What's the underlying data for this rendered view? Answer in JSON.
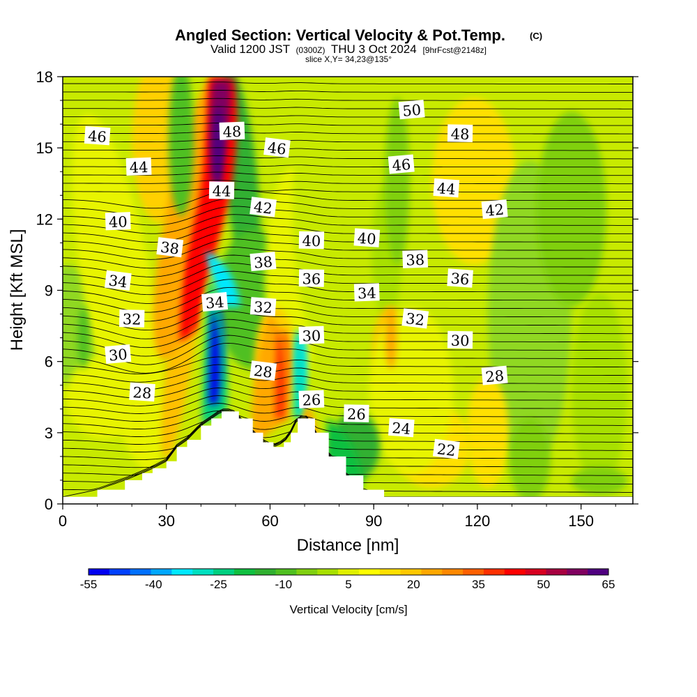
{
  "title": {
    "main": "Angled Section: Vertical Velocity & Pot.Temp.",
    "copyright": "(C)",
    "valid_prefix": "Valid 1200 JST",
    "valid_utc": "(0300Z)",
    "valid_date": "THU 3 Oct 2024",
    "forecast": "[9hrFcst@2148z]",
    "slice": "slice X,Y= 34,23@135°"
  },
  "chart_data": {
    "type": "heatmap",
    "xlabel": "Distance [nm]",
    "ylabel": "Height [Kft MSL]",
    "xlim": [
      0,
      165
    ],
    "ylim": [
      0,
      18
    ],
    "xticks": [
      "0",
      "30",
      "60",
      "90",
      "120",
      "150"
    ],
    "yticks": [
      "0",
      "3",
      "6",
      "9",
      "12",
      "15",
      "18"
    ],
    "xtick_values": [
      0,
      30,
      60,
      90,
      120,
      150
    ],
    "ytick_values": [
      0,
      3,
      6,
      9,
      12,
      15,
      18
    ],
    "colorbar": {
      "label": "Vertical Velocity [cm/s]",
      "tick_labels": [
        "-55",
        "-40",
        "-25",
        "-10",
        "5",
        "20",
        "35",
        "50",
        "65"
      ],
      "tick_values": [
        -55,
        -40,
        -25,
        -10,
        5,
        20,
        35,
        50,
        65
      ],
      "bins": [
        -55,
        -50,
        -45,
        -40,
        -35,
        -30,
        -25,
        -20,
        -15,
        -10,
        -5,
        0,
        5,
        10,
        15,
        20,
        25,
        30,
        35,
        40,
        45,
        50,
        55,
        60,
        65
      ],
      "colors": [
        "#0000f0",
        "#0040ff",
        "#0070ff",
        "#00a8ff",
        "#00e8ff",
        "#00e0c0",
        "#00d080",
        "#10c040",
        "#30b030",
        "#50c020",
        "#80d010",
        "#a8e000",
        "#e0f000",
        "#ffff00",
        "#ffe000",
        "#ffc800",
        "#ffa800",
        "#ff8800",
        "#ff6000",
        "#ff3000",
        "#ff0000",
        "#d80020",
        "#a80040",
        "#800060",
        "#500080"
      ]
    },
    "terrain": [
      [
        0,
        0.3
      ],
      [
        10,
        0.6
      ],
      [
        18,
        1.0
      ],
      [
        23,
        1.3
      ],
      [
        26,
        1.5
      ],
      [
        30,
        1.8
      ],
      [
        33,
        2.4
      ],
      [
        36,
        2.7
      ],
      [
        40,
        3.3
      ],
      [
        43,
        3.6
      ],
      [
        46,
        3.9
      ],
      [
        49,
        3.9
      ],
      [
        51,
        3.6
      ],
      [
        55,
        3.0
      ],
      [
        58,
        2.6
      ],
      [
        61,
        2.4
      ],
      [
        64,
        2.6
      ],
      [
        66,
        3.0
      ],
      [
        68,
        3.6
      ],
      [
        71,
        3.6
      ],
      [
        73,
        3.0
      ],
      [
        77,
        2.0
      ],
      [
        82,
        1.2
      ],
      [
        87,
        0.6
      ],
      [
        93,
        0.3
      ],
      [
        165,
        0.3
      ]
    ],
    "velocity_features": [
      {
        "x": 45,
        "y": 15,
        "value": 65
      },
      {
        "x": 38,
        "y": 9,
        "value": 45
      },
      {
        "x": 45,
        "y": 6.5,
        "value": -55
      },
      {
        "x": 69,
        "y": 6,
        "value": -35
      },
      {
        "x": 64,
        "y": 6,
        "value": 35
      },
      {
        "x": 95,
        "y": 7,
        "value": 25
      },
      {
        "x": 6,
        "y": 7,
        "value": -10
      }
    ],
    "theta_labels": [
      {
        "text": "50",
        "x": 101,
        "y": 16.6
      },
      {
        "text": "48",
        "x": 49,
        "y": 15.7
      },
      {
        "text": "48",
        "x": 115,
        "y": 15.6
      },
      {
        "text": "46",
        "x": 10,
        "y": 15.5
      },
      {
        "text": "46",
        "x": 62,
        "y": 15.0
      },
      {
        "text": "46",
        "x": 98,
        "y": 14.3
      },
      {
        "text": "44",
        "x": 22,
        "y": 14.2
      },
      {
        "text": "44",
        "x": 46,
        "y": 13.2
      },
      {
        "text": "44",
        "x": 111,
        "y": 13.3
      },
      {
        "text": "42",
        "x": 58,
        "y": 12.5
      },
      {
        "text": "42",
        "x": 125,
        "y": 12.4
      },
      {
        "text": "40",
        "x": 16,
        "y": 11.9
      },
      {
        "text": "40",
        "x": 72,
        "y": 11.1
      },
      {
        "text": "40",
        "x": 88,
        "y": 11.2
      },
      {
        "text": "38",
        "x": 31,
        "y": 10.8
      },
      {
        "text": "38",
        "x": 58,
        "y": 10.2
      },
      {
        "text": "38",
        "x": 102,
        "y": 10.3
      },
      {
        "text": "36",
        "x": 72,
        "y": 9.5
      },
      {
        "text": "36",
        "x": 115,
        "y": 9.5
      },
      {
        "text": "34",
        "x": 16,
        "y": 9.4
      },
      {
        "text": "34",
        "x": 44,
        "y": 8.5
      },
      {
        "text": "34",
        "x": 88,
        "y": 8.9
      },
      {
        "text": "32",
        "x": 20,
        "y": 7.8
      },
      {
        "text": "32",
        "x": 58,
        "y": 8.3
      },
      {
        "text": "32",
        "x": 102,
        "y": 7.8
      },
      {
        "text": "30",
        "x": 16,
        "y": 6.3
      },
      {
        "text": "30",
        "x": 72,
        "y": 7.1
      },
      {
        "text": "30",
        "x": 115,
        "y": 6.9
      },
      {
        "text": "28",
        "x": 23,
        "y": 4.7
      },
      {
        "text": "28",
        "x": 58,
        "y": 5.6
      },
      {
        "text": "28",
        "x": 125,
        "y": 5.4
      },
      {
        "text": "26",
        "x": 72,
        "y": 4.4
      },
      {
        "text": "26",
        "x": 85,
        "y": 3.8
      },
      {
        "text": "24",
        "x": 98,
        "y": 3.2
      },
      {
        "text": "22",
        "x": 111,
        "y": 2.3
      }
    ]
  }
}
